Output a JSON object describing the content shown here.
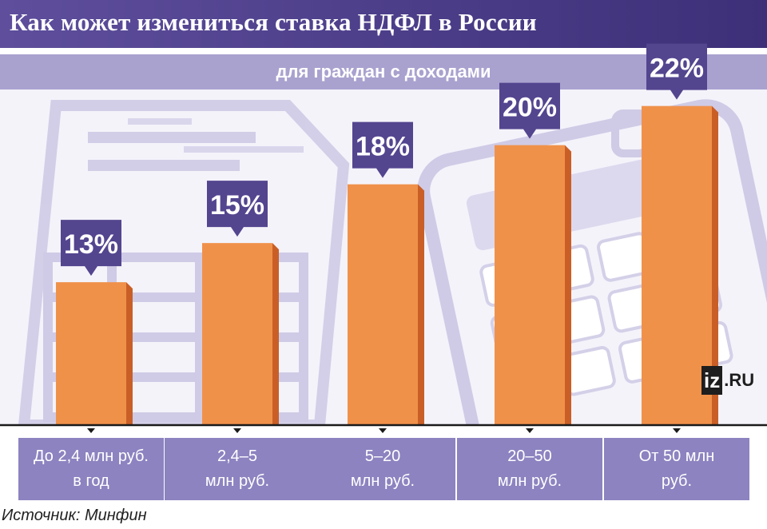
{
  "header": {
    "title": "Как может измениться ставка НДФЛ в России",
    "subtitle": "для граждан с доходами"
  },
  "colors": {
    "header": "#4a3c88",
    "subheader": "#a9a2cf",
    "bar_front": "#f0914a",
    "bar_side": "#c95f26",
    "callout": "#54458f",
    "label_box": "#8c83c0"
  },
  "logo": {
    "brand": "iz",
    "suffix": ".RU"
  },
  "source": "Источник: Минфин",
  "chart_data": {
    "type": "bar",
    "title": "Как может измениться ставка НДФЛ в России",
    "subtitle": "для граждан с доходами",
    "categories": [
      "До 2,4 млн руб.\nв год",
      "2,4–5\nмлн руб.",
      "5–20\nмлн руб.",
      "20–50\nмлн руб.",
      "От 50 млн\nруб."
    ],
    "values": [
      13,
      15,
      18,
      20,
      22
    ],
    "value_labels": [
      "13%",
      "15%",
      "18%",
      "20%",
      "22%"
    ],
    "unit": "%",
    "grid": false
  }
}
